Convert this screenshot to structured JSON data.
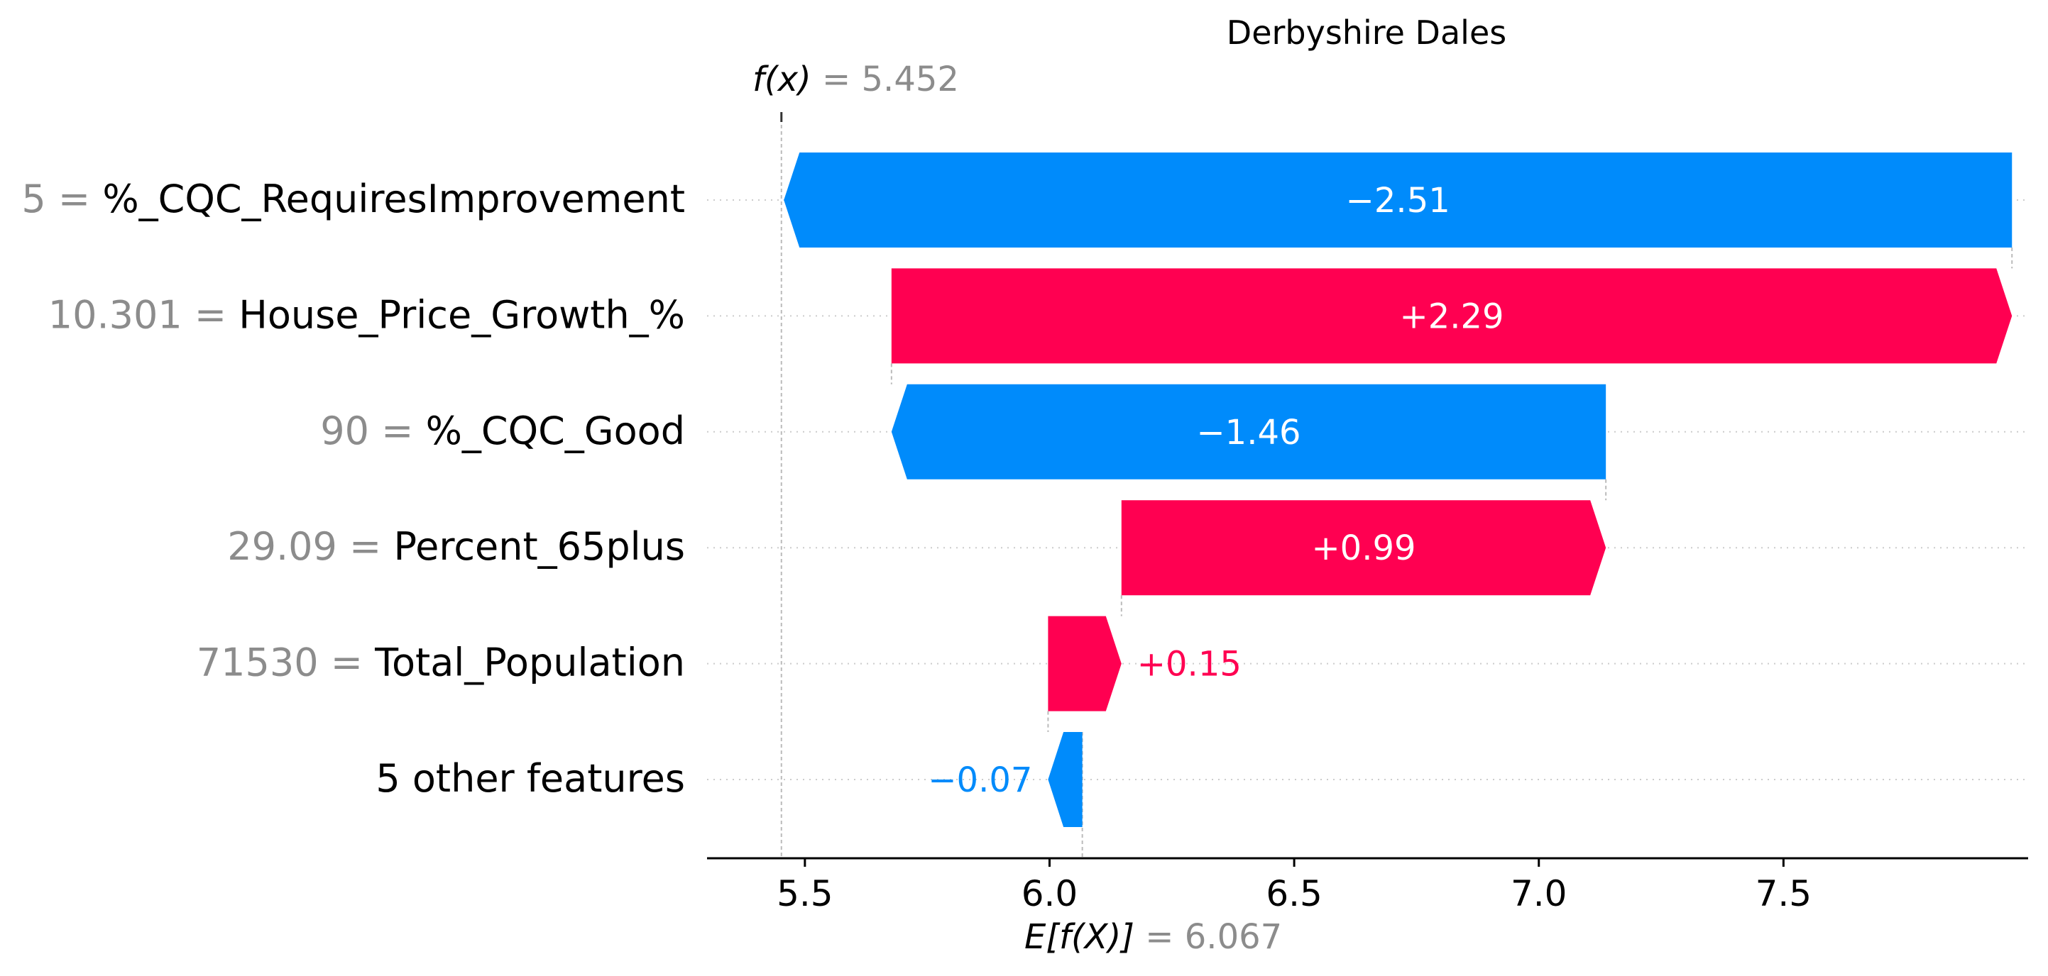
{
  "chart_data": {
    "type": "waterfall",
    "title": "Derbyshire Dales",
    "fx_label": "f(x)",
    "fx_value": "5.452",
    "ex_label": "E[f(X)]",
    "ex_value": "6.067",
    "base_value": 6.067,
    "output_value": 5.452,
    "xlim": [
      5.3,
      8.0
    ],
    "xticks": [
      5.5,
      6.0,
      6.5,
      7.0,
      7.5
    ],
    "xtick_labels": [
      "5.5",
      "6.0",
      "6.5",
      "7.0",
      "7.5"
    ],
    "features": [
      {
        "value": "5",
        "name": "%_CQC_RequiresImprovement",
        "contribution": -2.51,
        "label": "−2.51"
      },
      {
        "value": "10.301",
        "name": "House_Price_Growth_%",
        "contribution": 2.29,
        "label": "+2.29"
      },
      {
        "value": "90",
        "name": "%_CQC_Good",
        "contribution": -1.46,
        "label": "−1.46"
      },
      {
        "value": "29.09",
        "name": "Percent_65plus",
        "contribution": 0.99,
        "label": "+0.99"
      },
      {
        "value": "71530",
        "name": "Total_Population",
        "contribution": 0.15,
        "label": "+0.15"
      },
      {
        "value": "",
        "name": "5 other features",
        "contribution": -0.07,
        "label": "−0.07"
      }
    ],
    "colors": {
      "positive": "#ff0051",
      "negative": "#008bfb",
      "muted": "#8c8c8c"
    }
  }
}
